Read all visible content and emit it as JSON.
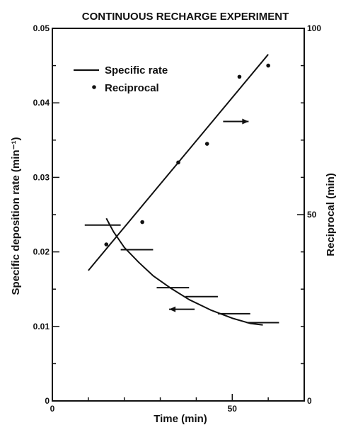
{
  "chart_data": {
    "type": "scatter",
    "title": "CONTINUOUS RECHARGE EXPERIMENT",
    "xlabel": "Time (min)",
    "ylabel_left": "Specific deposition rate (min⁻¹)",
    "ylabel_right": "Reciprocal (min)",
    "xlim": [
      0,
      70
    ],
    "ylim_left": [
      0,
      0.05
    ],
    "ylim_right": [
      0,
      100
    ],
    "x_ticks": [
      "0",
      "50"
    ],
    "y_left_ticks": [
      "0",
      "0.01",
      "0.02",
      "0.03",
      "0.04",
      "0.05"
    ],
    "y_right_ticks": [
      "0",
      "50",
      "100"
    ],
    "legend": {
      "position": "top-left",
      "entries": [
        "Specific rate",
        "Reciprocal"
      ]
    },
    "series": [
      {
        "name": "Specific rate",
        "axis": "left",
        "style": "horizontal-bars",
        "bars": [
          {
            "x_start": 9,
            "x_end": 19,
            "y": 0.0236
          },
          {
            "x_start": 19,
            "x_end": 28,
            "y": 0.0203
          },
          {
            "x_start": 29,
            "x_end": 38,
            "y": 0.0152
          },
          {
            "x_start": 37,
            "x_end": 46,
            "y": 0.014
          },
          {
            "x_start": 46,
            "x_end": 55,
            "y": 0.0117
          },
          {
            "x_start": 54,
            "x_end": 63,
            "y": 0.0105
          }
        ]
      },
      {
        "name": "Specific rate",
        "axis": "left",
        "style": "curve",
        "x": [
          15,
          17,
          20,
          24,
          28,
          33,
          38,
          44,
          50,
          55,
          58.5
        ],
        "y": [
          0.0245,
          0.0227,
          0.0206,
          0.0186,
          0.0168,
          0.0151,
          0.0136,
          0.0122,
          0.0111,
          0.0104,
          0.0102
        ]
      },
      {
        "name": "Reciprocal",
        "axis": "right",
        "style": "points",
        "x": [
          15,
          25,
          35,
          43,
          52,
          60
        ],
        "y": [
          42,
          48,
          64,
          69,
          87,
          90
        ]
      },
      {
        "name": "Reciprocal",
        "axis": "right",
        "style": "fit-line",
        "x": [
          10,
          60
        ],
        "y": [
          35,
          93
        ]
      }
    ],
    "annotations": [
      {
        "type": "arrow",
        "direction": "right",
        "x": 51,
        "y": 0.0375
      },
      {
        "type": "arrow",
        "direction": "left",
        "x": 36,
        "y": 0.0123
      }
    ]
  }
}
